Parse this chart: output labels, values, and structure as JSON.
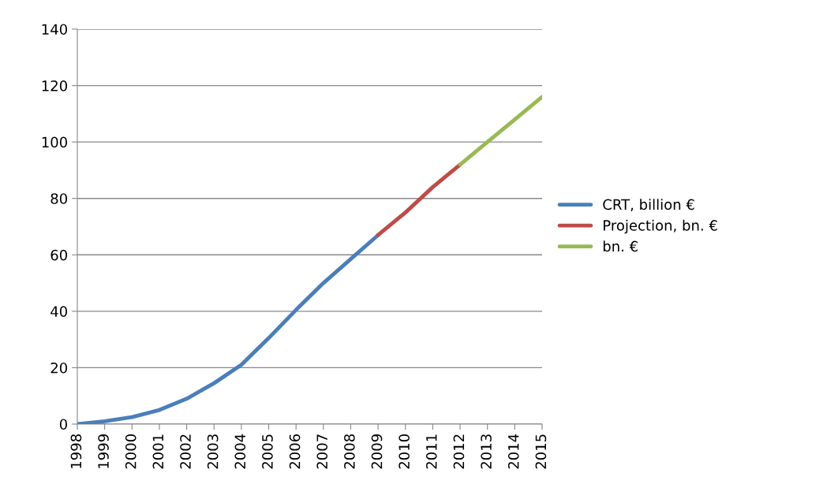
{
  "chart_data": {
    "type": "line",
    "categories": [
      "1998",
      "1999",
      "2000",
      "2001",
      "2002",
      "2003",
      "2004",
      "2005",
      "2006",
      "2007",
      "2008",
      "2009",
      "2010",
      "2011",
      "2012",
      "2013",
      "2014",
      "2015"
    ],
    "series": [
      {
        "name": "CRT, billion €",
        "color": "#4a7ebb",
        "values": [
          0,
          1,
          2.5,
          5,
          9,
          14.5,
          21,
          30.5,
          40.5,
          50,
          58.5,
          67,
          null,
          null,
          null,
          null,
          null,
          null
        ]
      },
      {
        "name": "Projection, bn. €",
        "color": "#be4b48",
        "values": [
          null,
          null,
          null,
          null,
          null,
          null,
          null,
          null,
          null,
          null,
          null,
          67,
          75,
          84,
          92,
          null,
          null,
          null
        ]
      },
      {
        "name": "bn. €",
        "color": "#98b954",
        "values": [
          null,
          null,
          null,
          null,
          null,
          null,
          null,
          null,
          null,
          null,
          null,
          null,
          null,
          null,
          92,
          100,
          108,
          116
        ]
      }
    ],
    "ylim": [
      0,
      140
    ],
    "yticks": [
      0,
      20,
      40,
      60,
      80,
      100,
      120,
      140
    ],
    "grid": "y",
    "legend": "right"
  }
}
